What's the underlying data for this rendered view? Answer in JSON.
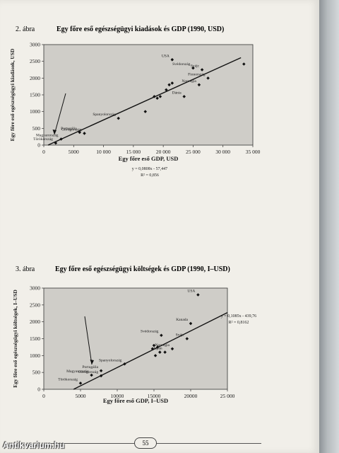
{
  "page_number": "55",
  "watermark": "Antikvarium.hu",
  "figures": [
    {
      "number": "2. ábra",
      "title": "Egy főre eső egészségügyi kiadások és GDP (1990, USD)"
    },
    {
      "number": "3. ábra",
      "title": "Egy főre eső egészségügyi költségek és GDP (1990, I–USD)"
    }
  ],
  "chart_data": [
    {
      "type": "scatter",
      "title": "Egy főre eső egészségügyi kiadások és GDP (1990, USD)",
      "xlabel": "Egy főre eső GDP, USD",
      "ylabel": "Egy főre eső egészségügyi kiadások, USD",
      "xlim": [
        0,
        35000
      ],
      "ylim": [
        0,
        3000
      ],
      "xticks": [
        "0",
        "5000",
        "10 000",
        "15 000",
        "20 000",
        "25 000",
        "30 000",
        "35 000"
      ],
      "yticks": [
        "0",
        "500",
        "1000",
        "1500",
        "2000",
        "2500",
        "3000"
      ],
      "grid": false,
      "regression": {
        "slope": 0.0808,
        "intercept": -57.447,
        "equation": "y = 0,0808x - 57,447",
        "r2": "R² = 0,856"
      },
      "points": [
        {
          "x": 21500,
          "y": 2550,
          "label": "USA"
        },
        {
          "x": 26500,
          "y": 2250,
          "label": "Svájc"
        },
        {
          "x": 25000,
          "y": 2300,
          "label": "Svédország"
        },
        {
          "x": 27500,
          "y": 2000,
          "label": "Finnország"
        },
        {
          "x": 26000,
          "y": 1800,
          "label": "Norvégia"
        },
        {
          "x": 23500,
          "y": 1450,
          "label": "Dánia"
        },
        {
          "x": 33500,
          "y": 2420,
          "label": ""
        },
        {
          "x": 21000,
          "y": 1800,
          "label": ""
        },
        {
          "x": 21500,
          "y": 1850,
          "label": ""
        },
        {
          "x": 20500,
          "y": 1650,
          "label": ""
        },
        {
          "x": 19500,
          "y": 1450,
          "label": ""
        },
        {
          "x": 19000,
          "y": 1400,
          "label": ""
        },
        {
          "x": 18500,
          "y": 1450,
          "label": ""
        },
        {
          "x": 17000,
          "y": 1000,
          "label": ""
        },
        {
          "x": 12500,
          "y": 800,
          "label": "Spanyolország"
        },
        {
          "x": 6000,
          "y": 380,
          "label": "Portugália"
        },
        {
          "x": 6800,
          "y": 350,
          "label": "Görögország"
        },
        {
          "x": 2900,
          "y": 180,
          "label": "Magyarország"
        },
        {
          "x": 2000,
          "y": 60,
          "label": "Törökország"
        }
      ]
    },
    {
      "type": "scatter",
      "title": "Egy főre eső egészségügyi költségek és GDP (1990, I–USD)",
      "xlabel": "Egy főre eső GDP, I–USD",
      "ylabel": "Egy főre eső egészségügyi költségek, I–USD",
      "xlim": [
        0,
        25000
      ],
      "ylim": [
        0,
        3000
      ],
      "xticks": [
        "0",
        "5000",
        "10000",
        "15000",
        "20000",
        "25 000"
      ],
      "yticks": [
        "0",
        "500",
        "1000",
        "1500",
        "2000",
        "2500",
        "3000"
      ],
      "grid": false,
      "regression": {
        "slope": 0.1085,
        "intercept": -439.76,
        "equation": "y = 0,1085x - 439,76",
        "r2": "R² = 0,8162"
      },
      "points": [
        {
          "x": 21000,
          "y": 2800,
          "label": "USA"
        },
        {
          "x": 20000,
          "y": 1950,
          "label": "Kanada"
        },
        {
          "x": 16000,
          "y": 1600,
          "label": "Svédország"
        },
        {
          "x": 19500,
          "y": 1500,
          "label": "Svájc"
        },
        {
          "x": 17500,
          "y": 1200,
          "label": "Norvégia"
        },
        {
          "x": 16500,
          "y": 1100,
          "label": "Japán"
        },
        {
          "x": 15000,
          "y": 1300,
          "label": ""
        },
        {
          "x": 15500,
          "y": 1250,
          "label": ""
        },
        {
          "x": 14800,
          "y": 1200,
          "label": ""
        },
        {
          "x": 15200,
          "y": 1000,
          "label": ""
        },
        {
          "x": 15800,
          "y": 1100,
          "label": ""
        },
        {
          "x": 11000,
          "y": 750,
          "label": "Spanyolország"
        },
        {
          "x": 7800,
          "y": 550,
          "label": "Portugália"
        },
        {
          "x": 6500,
          "y": 420,
          "label": "Magyarország"
        },
        {
          "x": 7800,
          "y": 400,
          "label": "Görögország"
        },
        {
          "x": 5000,
          "y": 180,
          "label": "Törökország"
        }
      ]
    }
  ]
}
